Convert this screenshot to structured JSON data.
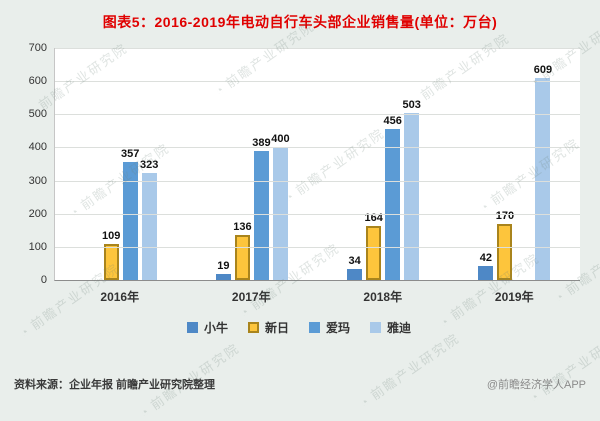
{
  "title": "图表5：2016-2019年电动自行车头部企业销售量(单位：万台)",
  "colors": {
    "title": "#e00000",
    "background": "#e9eeeb"
  },
  "watermark": "前瞻产业研究院",
  "watermark_icon": "◔",
  "footer": {
    "source": "资料来源：企业年报 前瞻产业研究院整理",
    "brand": "@前瞻经济学人APP"
  },
  "chart_data": {
    "type": "bar",
    "categories": [
      "2016年",
      "2017年",
      "2018年",
      "2019年"
    ],
    "series": [
      {
        "name": "小牛",
        "color": "#4e88c6",
        "values": [
          null,
          19,
          34,
          42
        ]
      },
      {
        "name": "新日",
        "color": "#fdc53c",
        "border": "#a9841c",
        "values": [
          109,
          136,
          164,
          170
        ]
      },
      {
        "name": "爱玛",
        "color": "#5b9bd5",
        "values": [
          357,
          389,
          456,
          null
        ]
      },
      {
        "name": "雅迪",
        "color": "#a9c9e9",
        "values": [
          323,
          400,
          503,
          609
        ]
      }
    ],
    "title": "2016-2019年电动自行车头部企业销售量",
    "unit": "万台",
    "xlabel": "",
    "ylabel": "",
    "ylim": [
      0,
      700
    ],
    "yticks": [
      0,
      100,
      200,
      300,
      400,
      500,
      600,
      700
    ],
    "grid": true,
    "legend_position": "bottom"
  }
}
